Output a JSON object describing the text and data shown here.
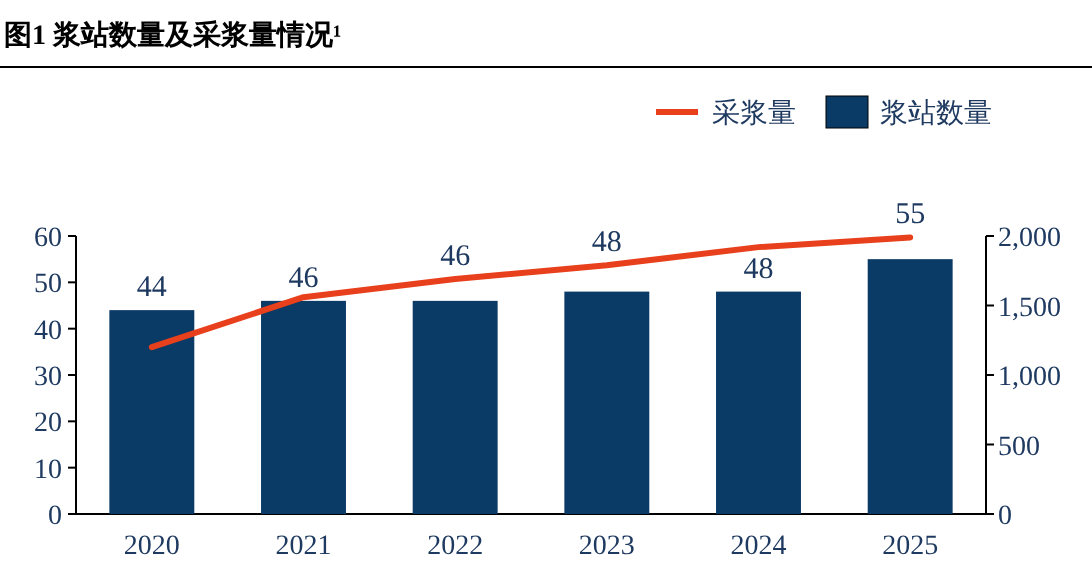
{
  "chart_data": {
    "type": "bar",
    "title": "图1 浆站数量及采浆量情况¹",
    "categories": [
      "2020",
      "2021",
      "2022",
      "2023",
      "2024",
      "2025"
    ],
    "series": [
      {
        "name": "采浆量",
        "type": "line",
        "axis": "y2",
        "color": "#e8401c",
        "values": [
          1200,
          1560,
          1690,
          1790,
          1920,
          1990
        ]
      },
      {
        "name": "浆站数量",
        "type": "bar",
        "color": "#0a3a66",
        "values": [
          44,
          46,
          46,
          48,
          48,
          55
        ],
        "value_labels": [
          "44",
          "46",
          "46",
          "48",
          "48",
          "55"
        ]
      }
    ],
    "ylim": [
      0,
      60
    ],
    "yticks": [
      0,
      10,
      20,
      30,
      40,
      50,
      60
    ],
    "y2lim": [
      0,
      2000
    ],
    "y2ticks": [
      0,
      500,
      {
        "value": 1000,
        "label": "1,000"
      },
      {
        "value": 1500,
        "label": "1,500"
      },
      {
        "value": 2000,
        "label": "2,000"
      }
    ],
    "legend": "top right"
  }
}
